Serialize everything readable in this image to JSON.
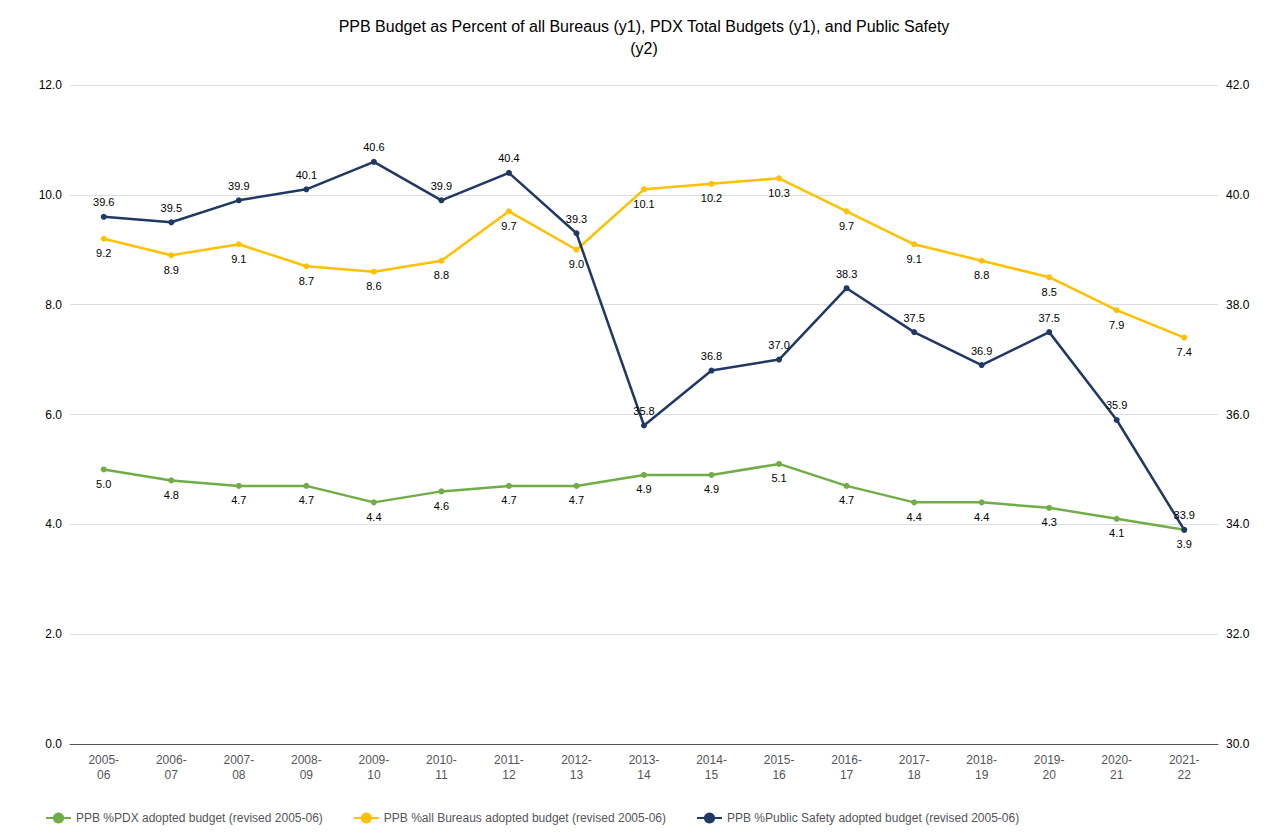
{
  "chart_data": {
    "type": "line",
    "title": "PPB Budget as Percent of all Bureaus (y1), PDX Total Budgets (y1), and Public Safety\n(y2)",
    "categories": [
      "2005-\n06",
      "2006-\n07",
      "2007-\n08",
      "2008-\n09",
      "2009-\n10",
      "2010-\n11",
      "2011-\n12",
      "2012-\n13",
      "2013-\n14",
      "2014-\n15",
      "2015-\n16",
      "2016-\n17",
      "2017-\n18",
      "2018-\n19",
      "2019-\n20",
      "2020-\n21",
      "2021-\n22"
    ],
    "series": [
      {
        "name": "PPB %PDX adopted budget (revised 2005-06)",
        "color": "#70AD47",
        "values": [
          5.0,
          4.8,
          4.7,
          4.7,
          4.4,
          4.6,
          4.7,
          4.7,
          4.9,
          4.9,
          5.1,
          4.7,
          4.4,
          4.4,
          4.3,
          4.1,
          3.9
        ],
        "value_labels": [
          "5.0",
          "4.8",
          "4.7",
          "4.7",
          "4.4",
          "4.6",
          "4.7",
          "4.7",
          "4.9",
          "4.9",
          "5.1",
          "4.7",
          "4.4",
          "4.4",
          "4.3",
          "4.1",
          "3.9"
        ]
      },
      {
        "name": "PPB %all Bureaus adopted budget (revised 2005-06)",
        "color": "#FFC000",
        "values": [
          9.2,
          8.9,
          9.1,
          8.7,
          8.6,
          8.8,
          9.7,
          9.0,
          10.1,
          10.2,
          10.3,
          9.7,
          9.1,
          8.8,
          8.5,
          7.9,
          7.4
        ],
        "value_labels": [
          "9.2",
          "8.9",
          "9.1",
          "8.7",
          "8.6",
          "8.8",
          "9.7",
          "9.0",
          "10.1",
          "10.2",
          "10.3",
          "9.7",
          "9.1",
          "8.8",
          "8.5",
          "7.9",
          "7.4"
        ]
      },
      {
        "name": "PPB %Public Safety adopted budget (revised 2005-06)",
        "color": "#203864",
        "axis": "y2",
        "values": [
          39.6,
          39.5,
          39.9,
          40.1,
          40.6,
          39.9,
          40.4,
          39.3,
          35.8,
          36.8,
          37.0,
          38.3,
          37.5,
          36.9,
          37.5,
          35.9,
          33.9
        ],
        "value_labels": [
          "39.6",
          "39.5",
          "39.9",
          "40.1",
          "40.6",
          "39.9",
          "40.4",
          "39.3",
          "35.8",
          "36.8",
          "37.0",
          "38.3",
          "37.5",
          "36.9",
          "37.5",
          "35.9",
          "33.9"
        ]
      }
    ],
    "ylim": [
      0,
      12
    ],
    "yticks": [
      {
        "value": 0,
        "label": "0.0"
      },
      {
        "value": 2,
        "label": "2.0"
      },
      {
        "value": 4,
        "label": "4.0"
      },
      {
        "value": 6,
        "label": "6.0"
      },
      {
        "value": 8,
        "label": "8.0"
      },
      {
        "value": 10,
        "label": "10.0"
      },
      {
        "value": 12,
        "label": "12.0"
      }
    ],
    "y2lim": [
      30,
      42
    ],
    "y2ticks": [
      {
        "value": 30,
        "label": "30.0"
      },
      {
        "value": 32,
        "label": "32.0"
      },
      {
        "value": 34,
        "label": "34.0"
      },
      {
        "value": 36,
        "label": "36.0"
      },
      {
        "value": 38,
        "label": "38.0"
      },
      {
        "value": 40,
        "label": "40.0"
      },
      {
        "value": 42,
        "label": "42.0"
      }
    ],
    "grid": true,
    "legend": "bottom",
    "data_labels": true,
    "marker": "circle"
  }
}
